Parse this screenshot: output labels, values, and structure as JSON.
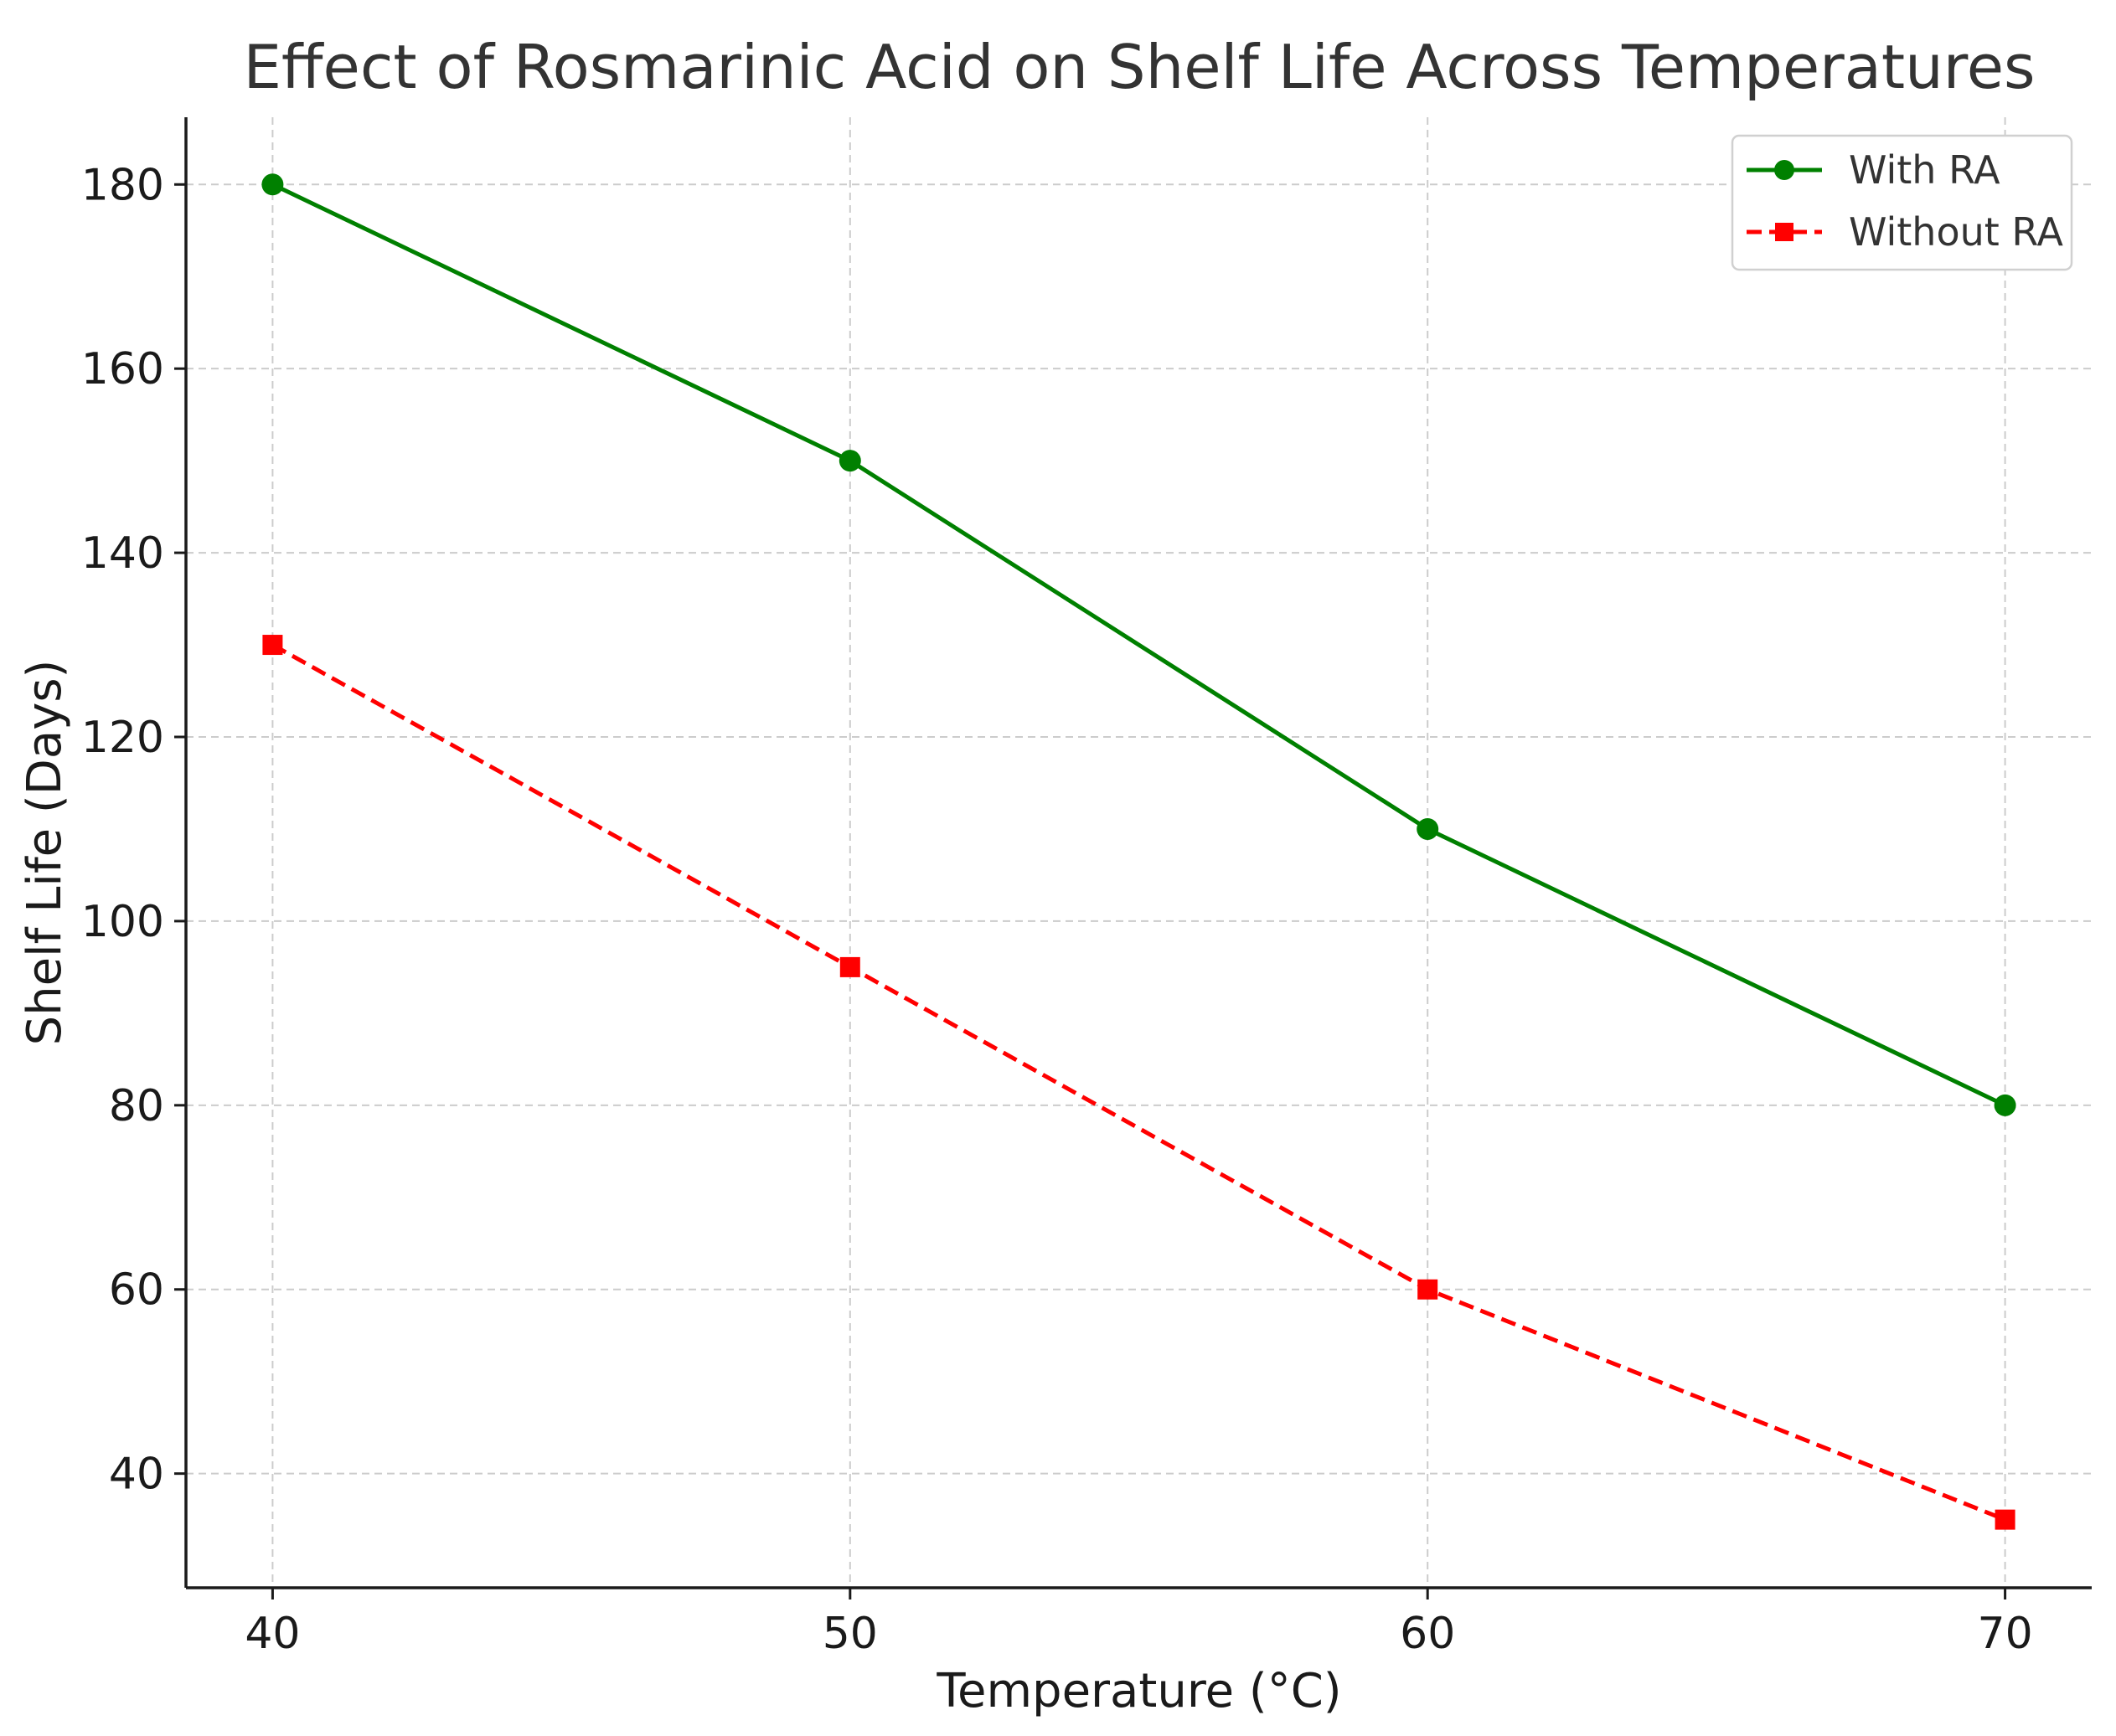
{
  "chart_data": {
    "type": "line",
    "title": "Effect of Rosmarinic Acid on Shelf Life Across Temperatures",
    "xlabel": "Temperature (°C)",
    "ylabel": "Shelf Life (Days)",
    "x": [
      40,
      50,
      60,
      70
    ],
    "xticks": [
      "40",
      "50",
      "60",
      "70"
    ],
    "yticks": [
      "40",
      "60",
      "80",
      "100",
      "120",
      "140",
      "160",
      "180"
    ],
    "xlim": [
      38.5,
      71.5
    ],
    "ylim": [
      27.6,
      187.3
    ],
    "grid": true,
    "legend_position": "top-right",
    "series": [
      {
        "name": "With RA",
        "values": [
          180,
          150,
          110,
          80
        ],
        "color": "#008000",
        "marker": "circle",
        "linestyle": "solid"
      },
      {
        "name": "Without RA",
        "values": [
          130,
          95,
          60,
          35
        ],
        "color": "#ff0000",
        "marker": "square",
        "linestyle": "dashed"
      }
    ]
  }
}
